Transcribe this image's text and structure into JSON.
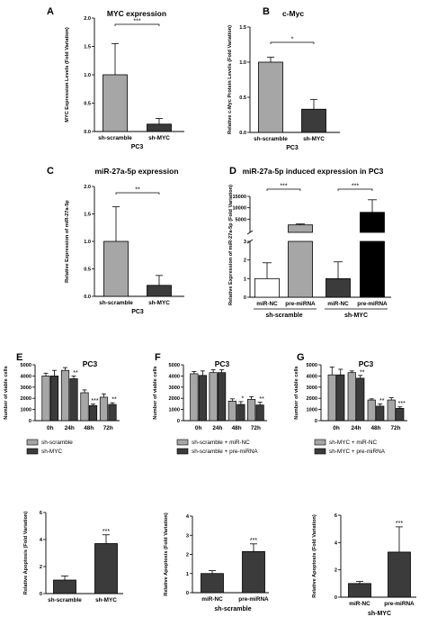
{
  "panel_labels": [
    "A",
    "B",
    "C",
    "D",
    "E",
    "F",
    "G"
  ],
  "colors": {
    "light": "#a6a6a6",
    "dark": "#3b3b3b",
    "white": "#ffffff",
    "black": "#000000"
  },
  "chart_data": [
    {
      "id": "A",
      "type": "bar",
      "title": "MYC expression",
      "ylabel": "MYC Expression Levels (Fold Variation)",
      "xlabel": "PC3",
      "categories": [
        "sh-scramble",
        "sh-MYC"
      ],
      "values": [
        1.0,
        0.13
      ],
      "errors": [
        0.55,
        0.1
      ],
      "ylim": [
        0,
        2.0
      ],
      "yticks": [
        0.0,
        0.5,
        1.0,
        1.5,
        2.0
      ],
      "tick_labels": [
        "0.0",
        "0.5",
        "1.0",
        "1.5",
        "2.0"
      ],
      "colors": [
        "#a6a6a6",
        "#3b3b3b"
      ],
      "significance": [
        {
          "from": 0,
          "to": 1,
          "label": "***"
        }
      ]
    },
    {
      "id": "B",
      "type": "bar",
      "title": "c-Myc",
      "ylabel": "Relative c-Myc Protein Levels (Fold Variation)",
      "xlabel": "PC3",
      "categories": [
        "sh-scramble",
        "sh-MYC"
      ],
      "values": [
        1.0,
        0.33
      ],
      "errors": [
        0.07,
        0.14
      ],
      "ylim": [
        0,
        1.5
      ],
      "yticks": [
        0.0,
        0.5,
        1.0,
        1.5
      ],
      "tick_labels": [
        "0.0",
        "0.5",
        "1.0",
        "1.5"
      ],
      "colors": [
        "#a6a6a6",
        "#3b3b3b"
      ],
      "significance": [
        {
          "from": 0,
          "to": 1,
          "label": "*"
        }
      ]
    },
    {
      "id": "C",
      "type": "bar",
      "title": "miR-27a-5p expression",
      "ylabel": "Relative Expression of miR-27a-5p",
      "xlabel": "PC3",
      "categories": [
        "sh-scramble",
        "sh-MYC"
      ],
      "values": [
        1.0,
        0.2
      ],
      "errors": [
        0.63,
        0.18
      ],
      "ylim": [
        0,
        2.0
      ],
      "yticks": [
        0.0,
        0.5,
        1.0,
        1.5,
        2.0
      ],
      "tick_labels": [
        "0.0",
        "0.5",
        "1.0",
        "1.5",
        "2.0"
      ],
      "colors": [
        "#a6a6a6",
        "#3b3b3b"
      ],
      "significance": [
        {
          "from": 0,
          "to": 1,
          "label": "**"
        }
      ]
    },
    {
      "id": "D",
      "type": "bar",
      "title": "miR-27a-5p induced expression in PC3",
      "ylabel": "Relative Expression of miR-27a-5p (Fold Variation)",
      "categories": [
        "miR-NC",
        "pre-miRNA",
        "miR-NC",
        "pre-miRNA"
      ],
      "groups": [
        "sh-scramble",
        "sh-MYC"
      ],
      "values": [
        1.0,
        2500,
        1.0,
        8000
      ],
      "errors": [
        0.85,
        400,
        0.9,
        5500
      ],
      "broken_axis": {
        "lower": [
          0,
          3
        ],
        "upper": [
          0,
          15000
        ]
      },
      "lower_ticks": [
        0,
        1,
        2,
        3
      ],
      "lower_tick_labels": [
        "0",
        "1",
        "2",
        "3"
      ],
      "upper_ticks": [
        5000,
        10000,
        15000
      ],
      "upper_tick_labels": [
        "5000",
        "10000",
        "15000"
      ],
      "colors": [
        "#ffffff",
        "#a6a6a6",
        "#3b3b3b",
        "#000000"
      ],
      "significance": [
        {
          "from": 0,
          "to": 1,
          "label": "***"
        },
        {
          "from": 2,
          "to": 3,
          "label": "***"
        }
      ]
    },
    {
      "id": "E",
      "type": "bar",
      "title": "PC3",
      "ylabel": "Number of viable cells",
      "categories": [
        "0h",
        "24h",
        "48h",
        "72h"
      ],
      "series": [
        {
          "name": "sh-scramble",
          "values": [
            4000,
            4500,
            2500,
            2100
          ],
          "errors": [
            250,
            250,
            250,
            300
          ]
        },
        {
          "name": "sh-MYC",
          "values": [
            4000,
            3750,
            1350,
            1450
          ],
          "errors": [
            500,
            250,
            130,
            150
          ]
        }
      ],
      "ylim": [
        0,
        5000
      ],
      "yticks": [
        0,
        1000,
        2000,
        3000,
        4000,
        5000
      ],
      "tick_labels": [
        "0",
        "1000",
        "2000",
        "3000",
        "4000",
        "5000"
      ],
      "colors": [
        "#a6a6a6",
        "#3b3b3b"
      ],
      "significance": [
        "",
        "**",
        "***",
        "**"
      ]
    },
    {
      "id": "F",
      "type": "bar",
      "title": "PC3",
      "ylabel": "Number of viable cells",
      "categories": [
        "0h",
        "24h",
        "48h",
        "72h"
      ],
      "series": [
        {
          "name": "sh-scramble + miR-NC",
          "values": [
            4200,
            4300,
            1750,
            1900
          ],
          "errors": [
            200,
            250,
            200,
            250
          ]
        },
        {
          "name": "sh-scramble + pre-miRNA",
          "values": [
            4050,
            4300,
            1450,
            1400
          ],
          "errors": [
            400,
            250,
            250,
            250
          ]
        }
      ],
      "ylim": [
        0,
        5000
      ],
      "yticks": [
        0,
        1000,
        2000,
        3000,
        4000,
        5000
      ],
      "tick_labels": [
        "0",
        "1000",
        "2000",
        "3000",
        "4000",
        "5000"
      ],
      "colors": [
        "#a6a6a6",
        "#3b3b3b"
      ],
      "significance": [
        "",
        "",
        "*",
        "**"
      ]
    },
    {
      "id": "G",
      "type": "bar",
      "title": "PC3",
      "ylabel": "Number of viable cells",
      "categories": [
        "0h",
        "24h",
        "48h",
        "72h"
      ],
      "series": [
        {
          "name": "sh-MYC + miR-NC",
          "values": [
            4100,
            4300,
            1850,
            1850
          ],
          "errors": [
            700,
            150,
            100,
            200
          ]
        },
        {
          "name": "sh-MYC + pre-miRNA",
          "values": [
            4100,
            3800,
            1300,
            1100
          ],
          "errors": [
            500,
            250,
            200,
            130
          ]
        }
      ],
      "ylim": [
        0,
        5000
      ],
      "yticks": [
        0,
        1000,
        2000,
        3000,
        4000,
        5000
      ],
      "tick_labels": [
        "0",
        "1000",
        "2000",
        "3000",
        "4000",
        "5000"
      ],
      "colors": [
        "#a6a6a6",
        "#3b3b3b"
      ],
      "significance": [
        "",
        "**",
        "**",
        "***"
      ]
    },
    {
      "id": "E2",
      "type": "bar",
      "ylabel": "Relative Apoptosis (Fold Variation)",
      "categories": [
        "sh-scramble",
        "sh-MYC"
      ],
      "values": [
        1.0,
        3.7
      ],
      "errors": [
        0.3,
        0.65
      ],
      "ylim": [
        0,
        6
      ],
      "yticks": [
        0,
        2,
        4,
        6
      ],
      "tick_labels": [
        "0",
        "2",
        "4",
        "6"
      ],
      "colors": [
        "#3b3b3b",
        "#3b3b3b"
      ],
      "significance_label": "***"
    },
    {
      "id": "F2",
      "type": "bar",
      "ylabel": "Relative Apoptosis (Fold Variation)",
      "xlabel": "sh-scramble",
      "categories": [
        "miR-NC",
        "pre-miRNA"
      ],
      "values": [
        1.0,
        2.15
      ],
      "errors": [
        0.15,
        0.4
      ],
      "ylim": [
        0,
        4
      ],
      "yticks": [
        0,
        1,
        2,
        3,
        4
      ],
      "tick_labels": [
        "0",
        "1",
        "2",
        "3",
        "4"
      ],
      "colors": [
        "#3b3b3b",
        "#3b3b3b"
      ],
      "significance_label": "***"
    },
    {
      "id": "G2",
      "type": "bar",
      "ylabel": "Relative Apoptosis (Fold Variation)",
      "xlabel": "sh-MYC",
      "categories": [
        "miR-NC",
        "pre-miRNA"
      ],
      "values": [
        1.0,
        3.3
      ],
      "errors": [
        0.15,
        1.85
      ],
      "ylim": [
        0,
        6
      ],
      "yticks": [
        0,
        2,
        4,
        6
      ],
      "tick_labels": [
        "0",
        "2",
        "4",
        "6"
      ],
      "colors": [
        "#3b3b3b",
        "#3b3b3b"
      ],
      "significance_label": "***"
    }
  ]
}
